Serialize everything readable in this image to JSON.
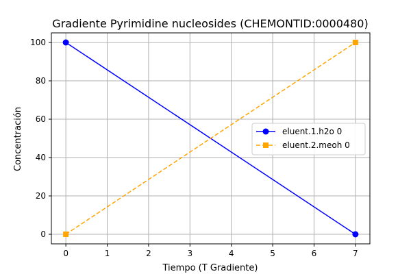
{
  "chart_data": {
    "type": "line",
    "title": "Gradiente Pyrimidine nucleosides (CHEMONTID:0000480)",
    "xlabel": "Tiempo (T Gradiente)",
    "ylabel": "Concentración",
    "xlim": [
      -0.35,
      7.35
    ],
    "ylim": [
      -5,
      105
    ],
    "xticks": [
      0,
      1,
      2,
      3,
      4,
      5,
      6,
      7
    ],
    "yticks": [
      0,
      20,
      40,
      60,
      80,
      100
    ],
    "grid": true,
    "legend_position": "center-right",
    "series": [
      {
        "name": "eluent.1.h2o 0",
        "x": [
          0,
          7
        ],
        "y": [
          100,
          0
        ],
        "color": "#0000ff",
        "line_style": "solid",
        "marker": "circle"
      },
      {
        "name": "eluent.2.meoh 0",
        "x": [
          0,
          7
        ],
        "y": [
          0,
          100
        ],
        "color": "#ffa500",
        "line_style": "dashed",
        "marker": "square"
      }
    ]
  }
}
